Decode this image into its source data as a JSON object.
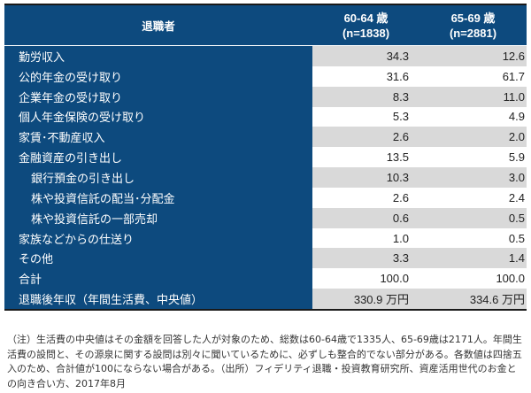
{
  "header": {
    "label": "退職者",
    "col1_line1": "60-64 歳",
    "col1_line2": "(n=1838)",
    "col2_line1": "65-69 歳",
    "col2_line2": "(n=2881)"
  },
  "rows": [
    {
      "label": "勤労収入",
      "v1": "34.3",
      "v2": "12.6"
    },
    {
      "label": "公的年金の受け取り",
      "v1": "31.6",
      "v2": "61.7"
    },
    {
      "label": "企業年金の受け取り",
      "v1": "8.3",
      "v2": "11.0"
    },
    {
      "label": "個人年金保険の受け取り",
      "v1": "5.3",
      "v2": "4.9"
    },
    {
      "label": "家賃･不動産収入",
      "v1": "2.6",
      "v2": "2.0"
    },
    {
      "label": "金融資産の引き出し",
      "v1": "13.5",
      "v2": "5.9"
    },
    {
      "label": "銀行預金の引き出し",
      "v1": "10.3",
      "v2": "3.0"
    },
    {
      "label": "株や投資信託の配当･分配金",
      "v1": "2.6",
      "v2": "2.4"
    },
    {
      "label": "株や投資信託の一部売却",
      "v1": "0.6",
      "v2": "0.5"
    },
    {
      "label": "家族などからの仕送り",
      "v1": "1.0",
      "v2": "0.5"
    },
    {
      "label": "その他",
      "v1": "3.3",
      "v2": "1.4"
    },
    {
      "label": "合計",
      "v1": "100.0",
      "v2": "100.0"
    },
    {
      "label": "退職後年収（年間生活費、中央値）",
      "v1": "330.9 万円",
      "v2": "334.6 万円"
    }
  ],
  "note": "（注）生活費の中央値はその金額を回答した人が対象のため、総数は60-64歳で1335人、65-69歳は2171人。年間生活費の設問と、その源泉に関する設問は別々に聞いているために、必ずしも整合的でない部分がある。各数値は四捨五入のため、合計値が100にならない場合がある。（出所）フィデリティ退職・投資教育研究所、資産活用世代のお金との向き合い方、2017年8月"
}
